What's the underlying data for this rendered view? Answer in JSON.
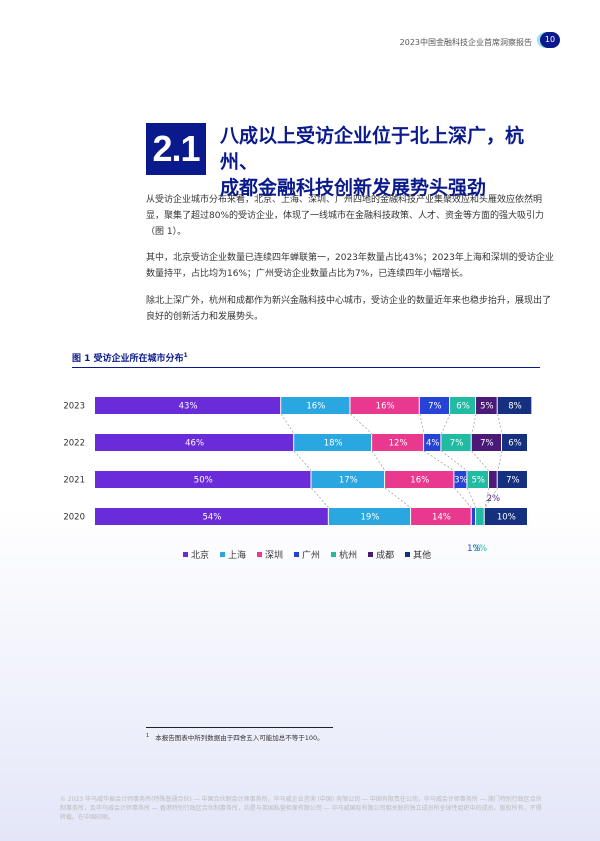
{
  "header": {
    "title": "2023中国金融科技企业首席洞察报告",
    "page_number": "10"
  },
  "section": {
    "number": "2.1",
    "title_line1": "八成以上受访企业位于北上深广，杭州、",
    "title_line2": "成都金融科技创新发展势头强劲"
  },
  "paragraphs": [
    "从受访企业城市分布来看，北京、上海、深圳、广州四地的金融科技产业集聚效应和头雁效应依然明显，聚集了超过80%的受访企业，体现了一线城市在金融科技政策、人才、资金等方面的强大吸引力（图 1）。",
    "其中，北京受访企业数量已连续四年蝉联第一，2023年数量占比43%；2023年上海和深圳的受访企业数量持平，占比均为16%；广州受访企业数量占比为7%，已连续四年小幅增长。",
    "除北上深广外，杭州和成都作为新兴金融科技中心城市，受访企业的数量近年来也稳步抬升，展现出了良好的创新活力和发展势头。"
  ],
  "figure": {
    "title": "图 1 受访企业所在城市分布",
    "footnote_ref": "1"
  },
  "chart_data": {
    "type": "bar",
    "orientation": "horizontal-stacked",
    "categories": [
      "2023",
      "2022",
      "2021",
      "2020"
    ],
    "series": [
      {
        "name": "北京",
        "color": "#6a2bd9",
        "values": [
          43,
          46,
          50,
          54
        ],
        "labels": [
          "43%",
          "46%",
          "50%",
          "54%"
        ]
      },
      {
        "name": "上海",
        "color": "#2aa6e0",
        "values": [
          16,
          18,
          17,
          19
        ],
        "labels": [
          "16%",
          "18%",
          "17%",
          "19%"
        ]
      },
      {
        "name": "深圳",
        "color": "#e8398f",
        "values": [
          16,
          12,
          16,
          14
        ],
        "labels": [
          "16%",
          "12%",
          "16%",
          "14%"
        ]
      },
      {
        "name": "广州",
        "color": "#2743d6",
        "values": [
          7,
          4,
          3,
          1
        ],
        "labels": [
          "7%",
          "4%",
          "3%",
          "1%"
        ]
      },
      {
        "name": "杭州",
        "color": "#21bba3",
        "values": [
          6,
          7,
          5,
          2
        ],
        "labels": [
          "6%",
          "7%",
          "5%",
          "2%"
        ]
      },
      {
        "name": "成都",
        "color": "#4b1a78",
        "values": [
          5,
          7,
          2,
          0
        ],
        "labels": [
          "5%",
          "7%",
          "2%",
          ""
        ]
      },
      {
        "name": "其他",
        "color": "#15307e",
        "values": [
          8,
          6,
          7,
          10
        ],
        "labels": [
          "8%",
          "6%",
          "7%",
          "10%"
        ]
      }
    ],
    "xlim": [
      0,
      100
    ],
    "legend": "bottom"
  },
  "footnote": {
    "marker": "1",
    "text": "本报告图表中所列数据由于四舍五入可能加总不等于100。"
  },
  "copyright": "© 2023 毕马威华振会计师事务所(特殊普通合伙) — 中国合伙制会计师事务所，毕马威企业咨询 (中国) 有限公司 — 中国有限责任公司，毕马威会计师事务所 — 澳门特别行政区合伙制事务所，及毕马威会计师事务所 — 香港特别行政区合伙制事务所，均是与英国私营担保有限公司 — 毕马威国际有限公司相关联的独立成员所全球性组织中的成员。版权所有，不得转载。在中国印刷。"
}
